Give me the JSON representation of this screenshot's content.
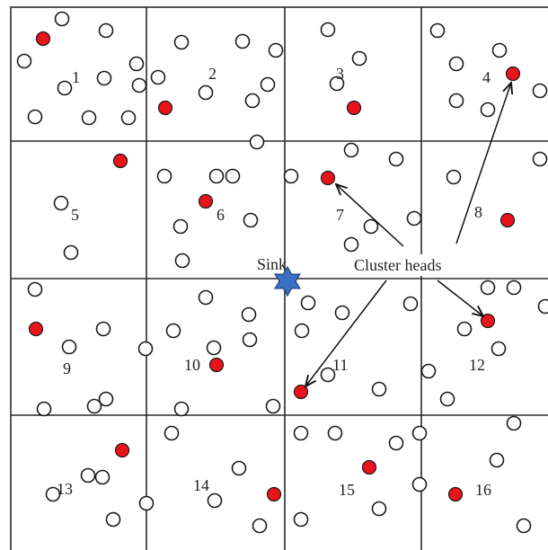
{
  "diagram": {
    "cell_labels": [
      "1",
      "2",
      "3",
      "4",
      "5",
      "6",
      "7",
      "8",
      "9",
      "10",
      "11",
      "12",
      "13",
      "14",
      "15",
      "16"
    ],
    "sink_label": "Sink",
    "cluster_heads_label": "Cluster heads"
  },
  "colors": {
    "grid": "#2a2a2a",
    "node_fill": "#ffffff",
    "cluster_head_fill": "#e8141b",
    "sink_fill": "#3b6fc4"
  }
}
